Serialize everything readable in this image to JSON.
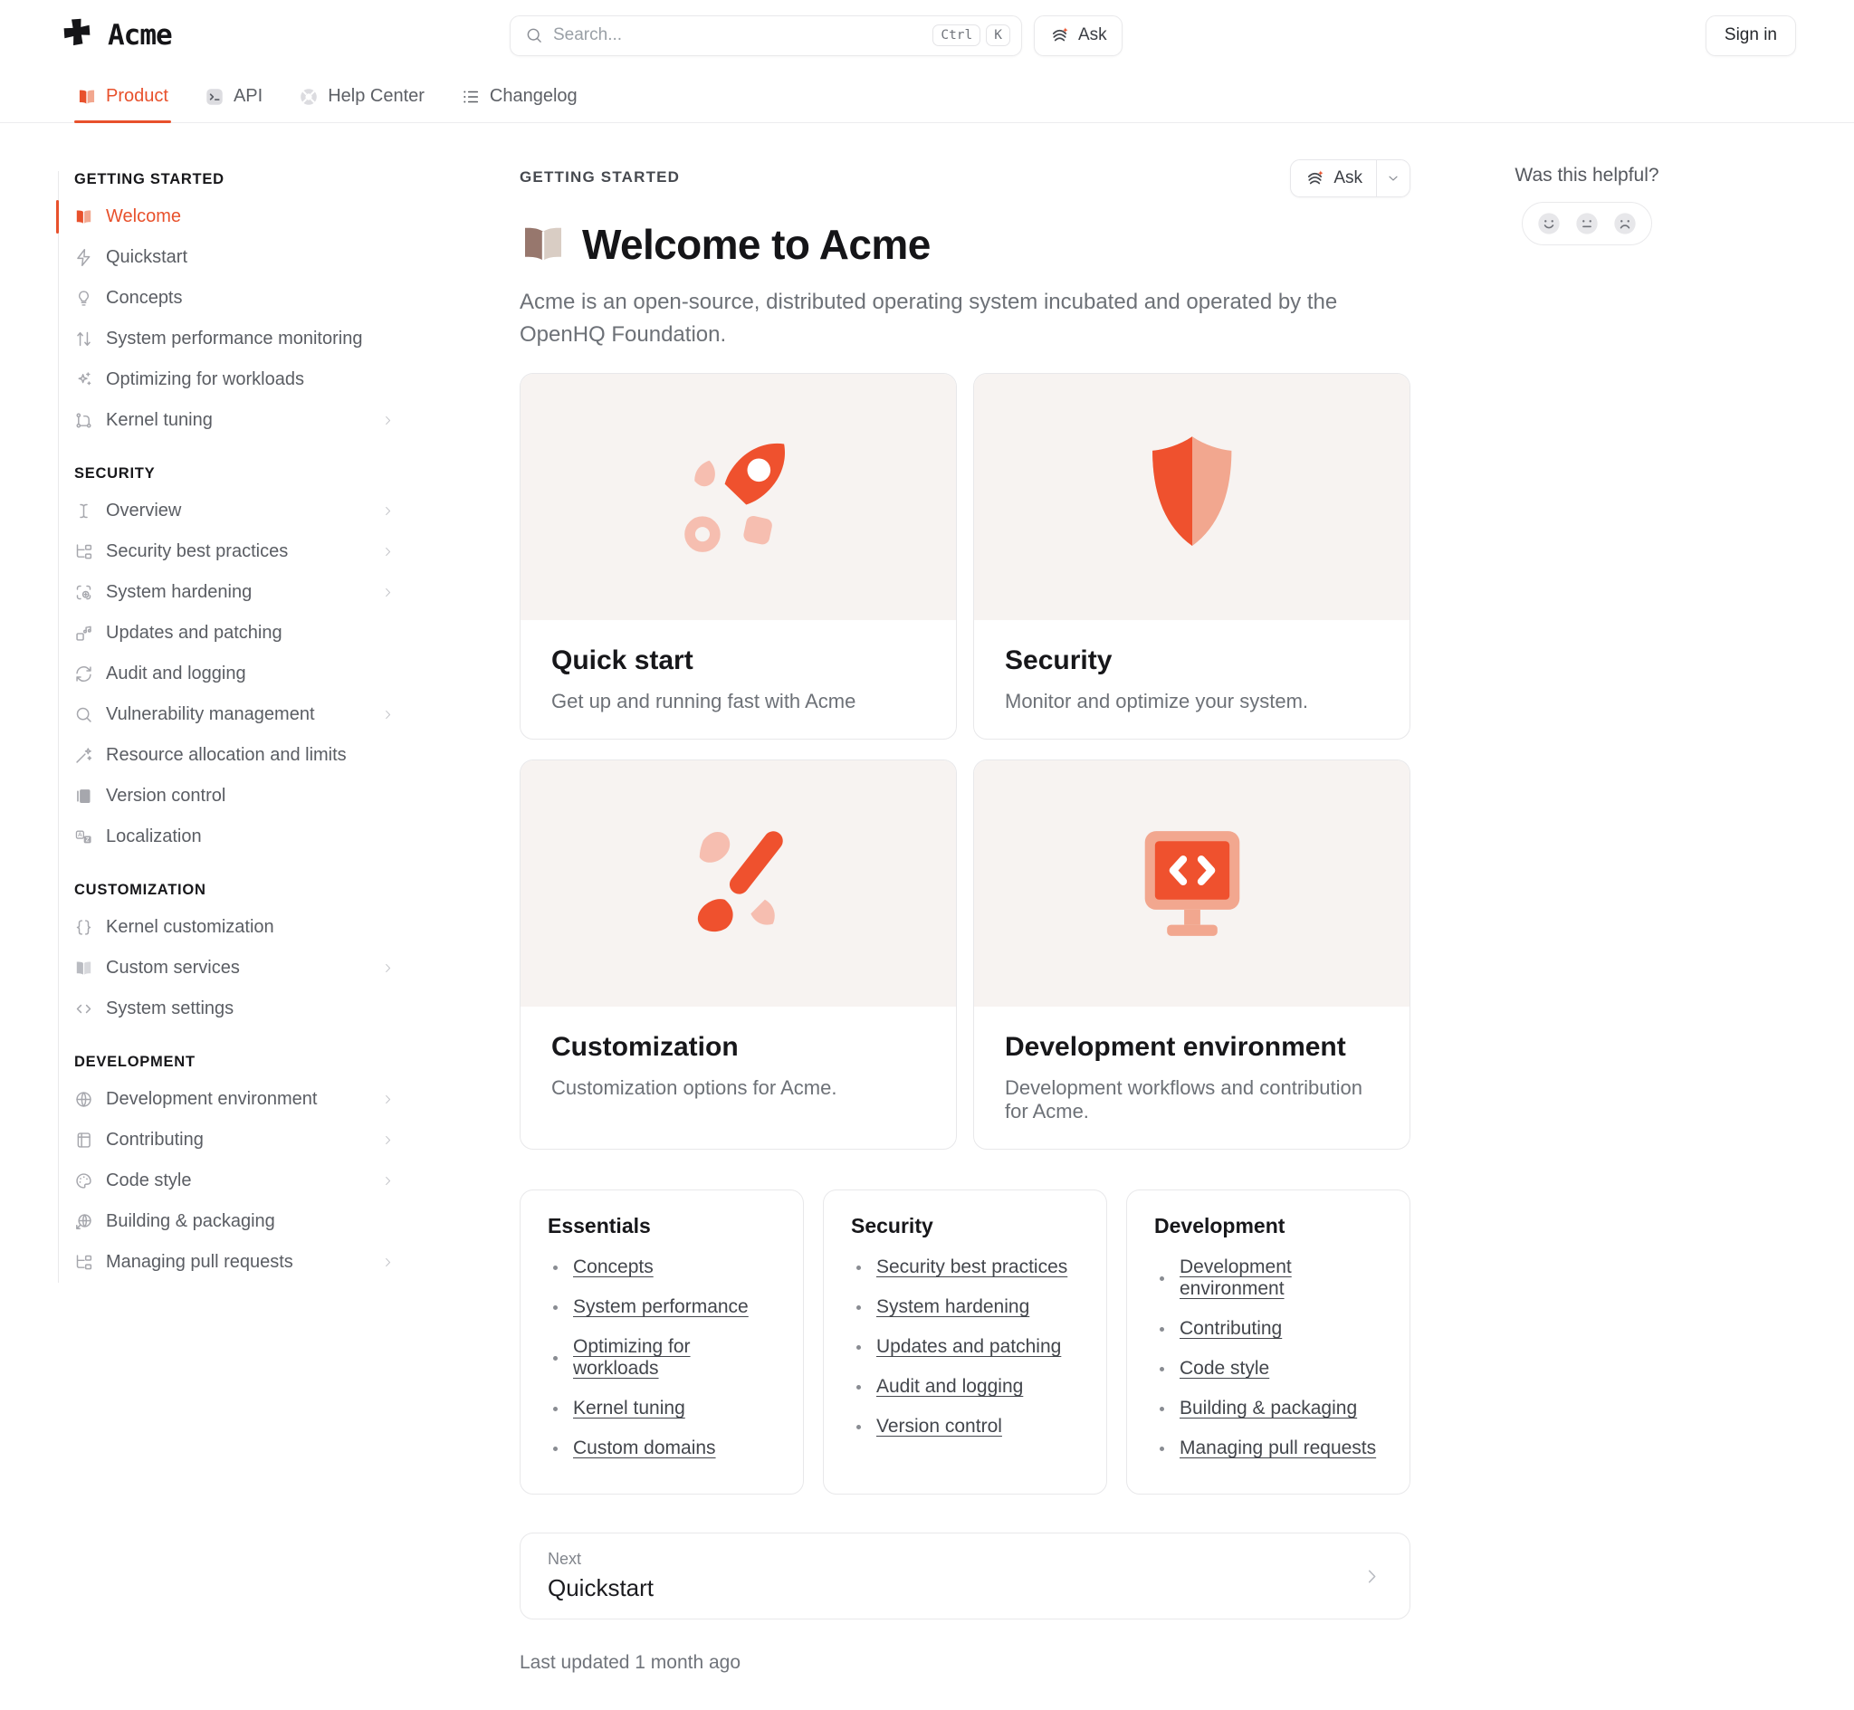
{
  "header": {
    "brand": "Acme",
    "search": {
      "placeholder": "Search...",
      "shortcut_keys": [
        "Ctrl",
        "K"
      ]
    },
    "ask_label": "Ask",
    "sign_in_label": "Sign in",
    "tabs": [
      {
        "label": "Product",
        "icon": "product-book",
        "active": true
      },
      {
        "label": "API",
        "icon": "terminal-badge",
        "active": false
      },
      {
        "label": "Help Center",
        "icon": "lifebuoy-badge",
        "active": false
      },
      {
        "label": "Changelog",
        "icon": "list-lines",
        "active": false
      }
    ]
  },
  "sidebar": {
    "sections": [
      {
        "title": "GETTING STARTED",
        "items": [
          {
            "label": "Welcome",
            "icon": "book-open",
            "active": true,
            "expandable": false
          },
          {
            "label": "Quickstart",
            "icon": "zap",
            "active": false,
            "expandable": false
          },
          {
            "label": "Concepts",
            "icon": "lightbulb",
            "active": false,
            "expandable": false
          },
          {
            "label": "System performance monitoring",
            "icon": "arrows-up-down",
            "active": false,
            "expandable": false
          },
          {
            "label": "Optimizing for workloads",
            "icon": "sparkles",
            "active": false,
            "expandable": false
          },
          {
            "label": "Kernel tuning",
            "icon": "nodes",
            "active": false,
            "expandable": true
          }
        ]
      },
      {
        "title": "SECURITY",
        "items": [
          {
            "label": "Overview",
            "icon": "text-cursor",
            "active": false,
            "expandable": true
          },
          {
            "label": "Security best practices",
            "icon": "folder-tree",
            "active": false,
            "expandable": true
          },
          {
            "label": "System hardening",
            "icon": "scan-plus",
            "active": false,
            "expandable": true
          },
          {
            "label": "Updates and patching",
            "icon": "music-box",
            "active": false,
            "expandable": false
          },
          {
            "label": "Audit and logging",
            "icon": "refresh",
            "active": false,
            "expandable": false
          },
          {
            "label": "Vulnerability management",
            "icon": "magnifier",
            "active": false,
            "expandable": true
          },
          {
            "label": "Resource allocation and limits",
            "icon": "wand",
            "active": false,
            "expandable": false
          },
          {
            "label": "Version control",
            "icon": "book-solid",
            "active": false,
            "expandable": false
          },
          {
            "label": "Localization",
            "icon": "translate",
            "active": false,
            "expandable": false
          }
        ]
      },
      {
        "title": "CUSTOMIZATION",
        "items": [
          {
            "label": "Kernel customization",
            "icon": "braces",
            "active": false,
            "expandable": false
          },
          {
            "label": "Custom services",
            "icon": "book-gray",
            "active": false,
            "expandable": true
          },
          {
            "label": "System settings",
            "icon": "code",
            "active": false,
            "expandable": false
          }
        ]
      },
      {
        "title": "DEVELOPMENT",
        "items": [
          {
            "label": "Development environment",
            "icon": "globe",
            "active": false,
            "expandable": true
          },
          {
            "label": "Contributing",
            "icon": "notebook",
            "active": false,
            "expandable": true
          },
          {
            "label": "Code style",
            "icon": "palette",
            "active": false,
            "expandable": true
          },
          {
            "label": "Building & packaging",
            "icon": "globe-arrow",
            "active": false,
            "expandable": false
          },
          {
            "label": "Managing pull requests",
            "icon": "folder-tree",
            "active": false,
            "expandable": true
          }
        ]
      }
    ]
  },
  "content": {
    "eyebrow": "GETTING STARTED",
    "ask_label": "Ask",
    "title_icon": "open-book-emoji",
    "title": "Welcome to Acme",
    "intro": "Acme is an open-source, distributed operating system incubated and operated by the OpenHQ Foundation.",
    "cards": [
      {
        "title": "Quick start",
        "description": "Get up and running fast with Acme",
        "illustration": "rocket"
      },
      {
        "title": "Security",
        "description": "Monitor and optimize your system.",
        "illustration": "shield"
      },
      {
        "title": "Customization",
        "description": "Customization options for Acme.",
        "illustration": "paintbrush"
      },
      {
        "title": "Development environment",
        "description": "Development workflows and contribution for Acme.",
        "illustration": "monitor-code"
      }
    ],
    "link_panels": [
      {
        "title": "Essentials",
        "links": [
          "Concepts",
          "System performance",
          "Optimizing for workloads",
          "Kernel tuning",
          "Custom domains"
        ]
      },
      {
        "title": "Security",
        "links": [
          "Security best practices",
          "System hardening",
          "Updates and patching",
          "Audit and logging",
          "Version control"
        ]
      },
      {
        "title": "Development",
        "links": [
          "Development environment",
          "Contributing",
          "Code style",
          "Building & packaging",
          "Managing pull requests"
        ]
      }
    ],
    "next": {
      "label": "Next",
      "target": "Quickstart"
    },
    "last_updated": "Last updated 1 month ago"
  },
  "feedback": {
    "question": "Was this helpful?",
    "options": [
      "happy-face",
      "neutral-face",
      "sad-face"
    ]
  },
  "colors": {
    "accent": "#e8512c",
    "accent_soft": "#f2a78f",
    "illustration_orange": "#ef512e",
    "illustration_pink": "#f6beb0",
    "illustration_bg": "#f7f3f1"
  }
}
